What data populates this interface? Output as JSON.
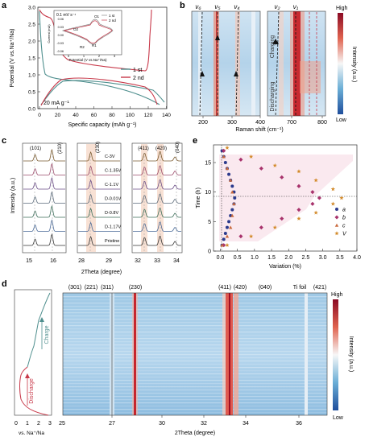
{
  "panel_labels": {
    "a": "a",
    "b": "b",
    "c": "c",
    "d": "d",
    "e": "e"
  },
  "colors": {
    "first": "#4f8f8e",
    "second": "#c8394a",
    "cv_first": "#888888",
    "cv_second": "#c8394a",
    "hm_high": "#b2182b",
    "hm_low": "#2166ac",
    "c_shade": "#f6d9c9"
  },
  "panel_a": {
    "ylabel": "Potential (V vs.Na⁺/Na)",
    "xlabel": "Specific capacity (mAh g⁻¹)",
    "yticks": [
      "0.0",
      "0.5",
      "1.0",
      "1.5",
      "2.0",
      "2.5",
      "3.0"
    ],
    "xticks": [
      "0",
      "20",
      "40",
      "60",
      "80",
      "100",
      "120",
      "140"
    ],
    "legend": [
      "1 st",
      "2 nd"
    ],
    "rate": "20 mA g⁻¹",
    "inset": {
      "rate": "0.1 mV s⁻¹",
      "ylabel": "Current (mA)",
      "xlabel": "Potential (V vs.Na⁺/Na)",
      "yticks": [
        "0.06",
        "0.03",
        "0.00",
        "-0.03",
        "-0.06"
      ],
      "xticks": [
        "0",
        "1",
        "2",
        "3"
      ],
      "legend": [
        "1 st",
        "2 nd"
      ],
      "peaks": [
        "O1",
        "O2",
        "R2",
        "R1"
      ]
    }
  },
  "panel_b": {
    "modes": [
      "ν₆",
      "ν₅",
      "ν₄",
      "ν₂",
      "ν₁"
    ],
    "xlabel": "Raman shift (cm⁻¹)",
    "xticks": [
      "200",
      "300",
      "400",
      "700",
      "800"
    ],
    "charging": "Charging",
    "discharging": "Discharging",
    "colorbar_label": "Intensity (a.u.)",
    "high": "High",
    "low": "Low"
  },
  "panel_c": {
    "ylabel": "Intensity (a.u.)",
    "xlabel": "2Theta (degree)",
    "curves": [
      "C-3V",
      "C-1.35V",
      "C-1.1V",
      "D-0.01V",
      "D-0.8V",
      "D-1.17V",
      "Pristine"
    ],
    "peaks": [
      "(101)",
      "(210)",
      "(230)",
      "(411)",
      "(420)",
      "(040)"
    ],
    "xticks1": [
      "15",
      "16"
    ],
    "xticks2": [
      "28",
      "29"
    ],
    "xticks3": [
      "32",
      "33",
      "34"
    ]
  },
  "panel_e": {
    "ylabel": "Time (h)",
    "xlabel": "Variation (%)",
    "yticks": [
      "0",
      "5",
      "10",
      "15"
    ],
    "xticks": [
      "0.0",
      "0.5",
      "1.0",
      "1.5",
      "2.0",
      "2.5",
      "3.0",
      "3.5",
      "4.0"
    ],
    "legend": [
      "a",
      "b",
      "c",
      "V"
    ],
    "legend_colors": [
      "#2b3a8c",
      "#a8336c",
      "#c96a3d",
      "#d38b2c"
    ]
  },
  "chart_data": {
    "type": "scatter",
    "xlabel": "Variation (%)",
    "ylabel": "Time (h)",
    "xlim": [
      -0.2,
      4.0
    ],
    "ylim": [
      0,
      18
    ],
    "series": [
      {
        "name": "a",
        "points": [
          [
            0.05,
            1
          ],
          [
            0.1,
            2
          ],
          [
            0.15,
            3
          ],
          [
            0.2,
            4
          ],
          [
            0.25,
            5
          ],
          [
            0.3,
            6
          ],
          [
            0.35,
            7
          ],
          [
            0.4,
            8
          ],
          [
            0.42,
            9
          ],
          [
            0.4,
            10
          ],
          [
            0.35,
            11
          ],
          [
            0.3,
            12
          ],
          [
            0.25,
            13
          ],
          [
            0.2,
            14
          ],
          [
            0.15,
            15
          ],
          [
            0.1,
            16
          ],
          [
            0.05,
            17
          ]
        ]
      },
      {
        "name": "b",
        "points": [
          [
            0.1,
            1
          ],
          [
            0.6,
            2.5
          ],
          [
            1.2,
            4
          ],
          [
            1.8,
            5.5
          ],
          [
            2.3,
            7
          ],
          [
            2.7,
            8
          ],
          [
            2.9,
            9
          ],
          [
            2.7,
            10
          ],
          [
            2.3,
            11
          ],
          [
            1.8,
            12.5
          ],
          [
            1.2,
            14
          ],
          [
            0.6,
            15.5
          ],
          [
            0.1,
            17
          ]
        ]
      },
      {
        "name": "c",
        "points": [
          [
            0.05,
            1
          ],
          [
            0.2,
            2.5
          ],
          [
            0.3,
            4
          ],
          [
            0.35,
            6
          ],
          [
            0.4,
            8
          ],
          [
            0.35,
            10
          ],
          [
            0.3,
            12
          ],
          [
            0.2,
            14
          ],
          [
            0.1,
            16
          ]
        ]
      },
      {
        "name": "V",
        "points": [
          [
            0.2,
            1
          ],
          [
            0.9,
            2.5
          ],
          [
            1.6,
            4
          ],
          [
            2.3,
            5.5
          ],
          [
            2.8,
            6.5
          ],
          [
            3.3,
            8
          ],
          [
            3.55,
            9
          ],
          [
            3.3,
            10.5
          ],
          [
            2.8,
            12
          ],
          [
            2.3,
            13.5
          ],
          [
            1.6,
            14.5
          ],
          [
            0.9,
            16
          ],
          [
            0.2,
            17.5
          ]
        ]
      }
    ]
  },
  "panel_d": {
    "peaks": [
      "(301)",
      "(221)",
      "(311)",
      "(230)",
      "(411)",
      "(420)",
      "(040)",
      "Ti foil",
      "(421)"
    ],
    "xlabel": "2Theta (degree)",
    "xticks": [
      "27",
      "30",
      "32",
      "34",
      "36"
    ],
    "tick_25": "25",
    "potential_label": "vs. Na⁺/Na",
    "potential_ticks": [
      "0",
      "1",
      "2",
      "3"
    ],
    "charge": "Charge",
    "discharge": "Discharge",
    "colorbar_label": "Intensity (a.u.)",
    "high": "High",
    "low": "Low"
  }
}
